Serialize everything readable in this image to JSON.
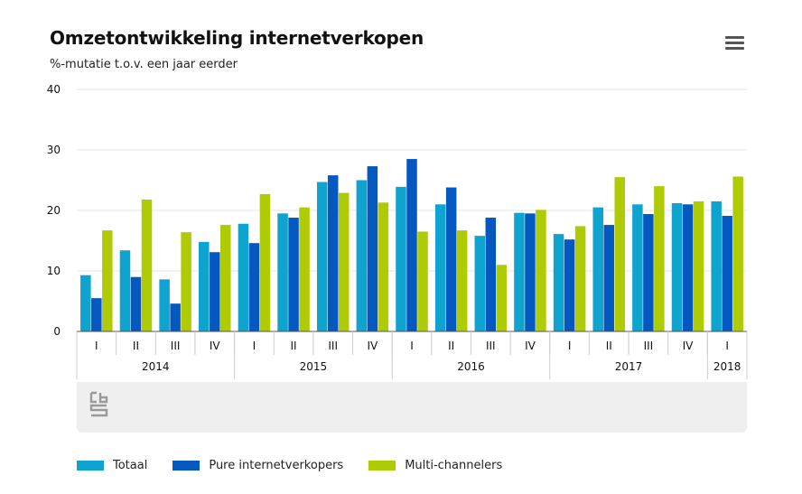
{
  "header": {
    "title": "Omzetontwikkeling internetverkopen",
    "subtitle": "%-mutatie t.o.v. een jaar eerder",
    "menu_icon": "hamburger-menu-icon"
  },
  "logo_icon": "cbs-logo-icon",
  "colors": {
    "Totaal": "#0fa3cf",
    "Pure internetverkopers": "#0558bf",
    "Multi-channelers": "#afcb05",
    "grid": "#e4e4e4",
    "axis": "#555555"
  },
  "chart_data": {
    "type": "bar",
    "title": "Omzetontwikkeling internetverkopen",
    "subtitle": "%-mutatie t.o.v. een jaar eerder",
    "xlabel": "",
    "ylabel": "",
    "ylim": [
      0,
      40
    ],
    "yticks": [
      0,
      10,
      20,
      30,
      40
    ],
    "grid": true,
    "legend": "bottom-left",
    "categories": [
      "I",
      "II",
      "III",
      "IV",
      "I",
      "II",
      "III",
      "IV",
      "I",
      "II",
      "III",
      "IV",
      "I",
      "II",
      "III",
      "IV",
      "I"
    ],
    "groups": [
      {
        "label": "2014",
        "count": 4
      },
      {
        "label": "2015",
        "count": 4
      },
      {
        "label": "2016",
        "count": 4
      },
      {
        "label": "2017",
        "count": 4
      },
      {
        "label": "2018",
        "count": 1
      }
    ],
    "series": [
      {
        "name": "Totaal",
        "values": [
          9.3,
          13.4,
          8.6,
          14.8,
          17.8,
          19.5,
          24.7,
          25.0,
          23.9,
          21.0,
          15.8,
          19.6,
          16.1,
          20.5,
          21.0,
          21.2,
          21.5
        ]
      },
      {
        "name": "Pure internetverkopers",
        "values": [
          5.5,
          9.0,
          4.6,
          13.1,
          14.6,
          18.8,
          25.8,
          27.3,
          28.5,
          23.8,
          18.8,
          19.5,
          15.2,
          17.6,
          19.4,
          21.0,
          19.1
        ]
      },
      {
        "name": "Multi-channelers",
        "values": [
          16.7,
          21.8,
          16.4,
          17.6,
          22.7,
          20.5,
          22.9,
          21.3,
          16.5,
          16.7,
          11.0,
          20.1,
          17.4,
          25.5,
          24.0,
          21.5,
          25.6
        ]
      }
    ]
  },
  "legend": {
    "items": [
      "Totaal",
      "Pure internetverkopers",
      "Multi-channelers"
    ]
  }
}
